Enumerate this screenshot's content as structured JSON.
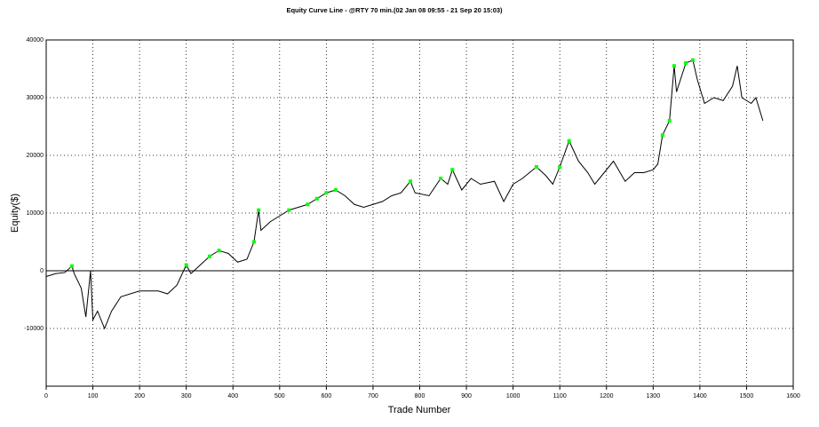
{
  "chart_data": {
    "type": "line",
    "title": "Equity Curve Line - @RTY 70 min.(02 Jan 08 09:55 - 21 Sep 20 15:03)",
    "x_label": "Trade Number",
    "y_label": "Equity($)",
    "x": [
      0,
      20,
      40,
      55,
      60,
      75,
      85,
      95,
      100,
      110,
      125,
      140,
      160,
      200,
      240,
      260,
      280,
      300,
      310,
      330,
      350,
      370,
      390,
      410,
      430,
      445,
      455,
      460,
      480,
      500,
      520,
      540,
      560,
      580,
      600,
      620,
      640,
      660,
      680,
      700,
      720,
      740,
      760,
      780,
      790,
      820,
      845,
      860,
      870,
      890,
      910,
      930,
      960,
      980,
      1000,
      1020,
      1050,
      1070,
      1085,
      1100,
      1120,
      1140,
      1160,
      1175,
      1200,
      1215,
      1240,
      1260,
      1280,
      1300,
      1310,
      1320,
      1335,
      1345,
      1350,
      1370,
      1385,
      1395,
      1410,
      1430,
      1450,
      1470,
      1480,
      1490,
      1510,
      1520,
      1535
    ],
    "series": [
      {
        "color": "#000000",
        "values": [
          -1000,
          -500,
          -300,
          800,
          -500,
          -3000,
          -8000,
          0,
          -8500,
          -7000,
          -10000,
          -7000,
          -4500,
          -3500,
          -3500,
          -4000,
          -2500,
          1000,
          -500,
          1000,
          2500,
          3500,
          3000,
          1500,
          2000,
          5000,
          10500,
          7000,
          8500,
          9500,
          10500,
          11000,
          11500,
          12500,
          13500,
          14000,
          13000,
          11500,
          11000,
          11500,
          12000,
          13000,
          13500,
          15500,
          13500,
          13000,
          16000,
          15000,
          17500,
          14000,
          16000,
          15000,
          15500,
          12000,
          15000,
          16000,
          18000,
          16500,
          15000,
          18000,
          22500,
          19000,
          17000,
          15000,
          17500,
          19000,
          15500,
          17000,
          17000,
          17500,
          18500,
          23500,
          26000,
          35500,
          31000,
          36000,
          36500,
          33000,
          29000,
          30000,
          29500,
          32000,
          35500,
          30000,
          29000,
          30000,
          26000
        ]
      },
      {
        "color": "#00ff00",
        "values": [
          null,
          null,
          null,
          800,
          null,
          null,
          null,
          null,
          null,
          null,
          null,
          null,
          null,
          null,
          null,
          null,
          null,
          1000,
          null,
          null,
          2500,
          3500,
          null,
          null,
          null,
          5000,
          10500,
          null,
          null,
          null,
          10500,
          null,
          11500,
          12500,
          13500,
          14000,
          null,
          null,
          null,
          null,
          null,
          null,
          null,
          15500,
          null,
          null,
          16000,
          null,
          17500,
          null,
          null,
          null,
          null,
          null,
          null,
          null,
          18000,
          null,
          null,
          18000,
          22500,
          null,
          null,
          null,
          null,
          null,
          null,
          null,
          null,
          null,
          null,
          23500,
          26000,
          35500,
          null,
          36000,
          36500,
          null,
          null,
          null,
          null,
          null,
          null,
          null,
          null,
          null,
          null
        ]
      }
    ],
    "xlim": [
      0,
      1600
    ],
    "ylim": [
      -20000,
      40000
    ],
    "xticks": [
      0,
      100,
      200,
      300,
      400,
      500,
      600,
      700,
      800,
      900,
      1000,
      1100,
      1200,
      1300,
      1400,
      1500,
      1600
    ],
    "yticks": [
      -10000,
      0,
      10000,
      20000,
      30000,
      40000
    ],
    "grid": true
  }
}
